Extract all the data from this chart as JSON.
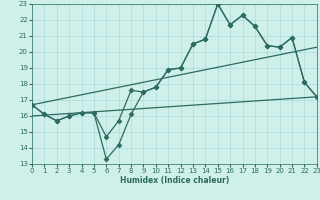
{
  "xlabel": "Humidex (Indice chaleur)",
  "x": [
    0,
    1,
    2,
    3,
    4,
    5,
    6,
    7,
    8,
    9,
    10,
    11,
    12,
    13,
    14,
    15,
    16,
    17,
    18,
    19,
    20,
    21,
    22,
    23
  ],
  "line1": [
    16.7,
    16.1,
    15.7,
    16.0,
    16.2,
    16.2,
    13.3,
    14.2,
    16.1,
    17.5,
    17.8,
    18.9,
    19.0,
    20.5,
    20.8,
    23.0,
    21.7,
    22.3,
    21.6,
    20.4,
    20.3,
    20.9,
    18.1,
    17.2
  ],
  "line2": [
    16.7,
    16.1,
    15.7,
    16.0,
    16.2,
    16.2,
    14.7,
    15.7,
    17.6,
    17.5,
    17.8,
    18.9,
    19.0,
    20.5,
    20.8,
    23.0,
    21.7,
    22.3,
    21.6,
    20.4,
    20.3,
    20.9,
    18.1,
    17.2
  ],
  "trend1_x": [
    0,
    23
  ],
  "trend1_y": [
    16.7,
    20.3
  ],
  "trend2_x": [
    0,
    23
  ],
  "trend2_y": [
    16.0,
    17.2
  ],
  "ylim": [
    13,
    23
  ],
  "xlim": [
    0,
    23
  ],
  "yticks": [
    13,
    14,
    15,
    16,
    17,
    18,
    19,
    20,
    21,
    22,
    23
  ],
  "xticks": [
    0,
    1,
    2,
    3,
    4,
    5,
    6,
    7,
    8,
    9,
    10,
    11,
    12,
    13,
    14,
    15,
    16,
    17,
    18,
    19,
    20,
    21,
    22,
    23
  ],
  "line_color": "#2d6b5e",
  "bg_color": "#cff0ea",
  "grid_color": "#aaddd6",
  "marker": "D",
  "marker_size": 2.5,
  "line_width": 0.9
}
